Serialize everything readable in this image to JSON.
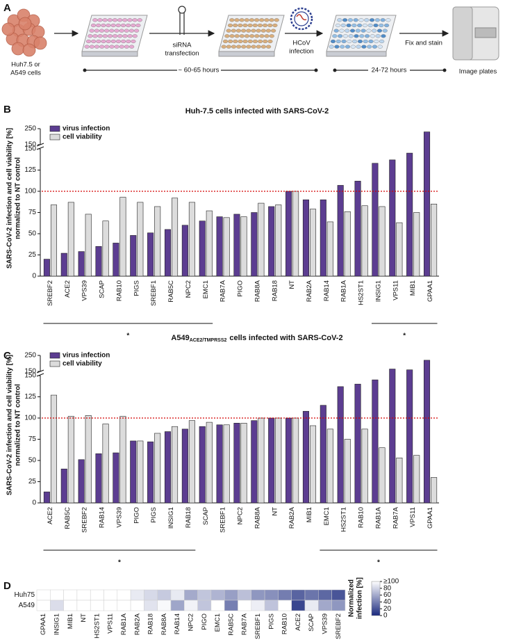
{
  "panel_labels": [
    "A",
    "B",
    "C",
    "D"
  ],
  "workflow": {
    "cells_label": [
      "Huh7.5 or",
      "A549 cells"
    ],
    "transfection_label": [
      "siRNA",
      "transfection"
    ],
    "infection_label": [
      "HCoV",
      "infection"
    ],
    "fix_label": "Fix and stain",
    "image_label": "Image plates",
    "timeline_1": "~ 60-65 hours",
    "timeline_2": "24-72 hours"
  },
  "chart_data": [
    {
      "type": "bar",
      "title": "Huh-7.5 cells infected with SARS-CoV-2",
      "ylabel": [
        "SARS-CoV-2 infection and cell viability [%]",
        "normalized to NT control"
      ],
      "categories": [
        "SREBF2",
        "ACE2",
        "VPS39",
        "SCAP",
        "RAB10",
        "PIGS",
        "SREBF1",
        "RAB5C",
        "NPC2",
        "EMC1",
        "RAB7A",
        "PIGO",
        "RAB8A",
        "RAB18",
        "NT",
        "RAB2A",
        "RAB14",
        "RAB1A",
        "HS2ST1",
        "INSIG1",
        "VPS11",
        "MIB1",
        "GPAA1"
      ],
      "series": [
        {
          "name": "virus infection",
          "color": "#5c3d91",
          "values": [
            20,
            27,
            29,
            35,
            39,
            48,
            51,
            55,
            60,
            65,
            70,
            73,
            75,
            82,
            100,
            90,
            90,
            107,
            112,
            133,
            137,
            145,
            230
          ]
        },
        {
          "name": "cell viability",
          "color": "#dcdcdc",
          "values": [
            84,
            87,
            73,
            65,
            93,
            87,
            82,
            92,
            87,
            77,
            69,
            70,
            86,
            84,
            100,
            79,
            64,
            76,
            83,
            82,
            63,
            75,
            85
          ]
        }
      ],
      "ylim": [
        0,
        250
      ],
      "ybreak": 150,
      "yticks": [
        0,
        25,
        50,
        75,
        100,
        125,
        150
      ],
      "yticks_upper": [
        150,
        250
      ],
      "reference_line": {
        "value": 100,
        "color": "#d40000"
      },
      "significance": [
        {
          "label": "*",
          "from": 0,
          "to": 9
        },
        {
          "label": "*",
          "from": 19,
          "to": 22
        }
      ],
      "legend": "upper left"
    },
    {
      "type": "bar",
      "title": "A549",
      "title_subscript": "ACE2/TMPRSS2",
      "title_suffix": "cells infected with SARS-CoV-2",
      "ylabel": [
        "SARS-CoV-2 infection and cell viability [%]",
        "normalized to NT control"
      ],
      "categories": [
        "ACE2",
        "RAB5C",
        "SREBF2",
        "RAB14",
        "VPS39",
        "PIGO",
        "PIGS",
        "INSIG1",
        "RAB18",
        "SCAP",
        "SREBF1",
        "NPC2",
        "RAB8A",
        "NT",
        "RAB2A",
        "MIB1",
        "EMC1",
        "HS2ST1",
        "RAB10",
        "RAB1A",
        "RAB7A",
        "VPS11",
        "GPAA1"
      ],
      "series": [
        {
          "name": "virus infection",
          "color": "#5c3d91",
          "values": [
            13,
            40,
            51,
            58,
            59,
            73,
            72,
            84,
            87,
            90,
            92,
            94,
            97,
            100,
            100,
            108,
            115,
            137,
            140,
            145,
            165,
            160,
            220
          ]
        },
        {
          "name": "cell viability",
          "color": "#dcdcdc",
          "values": [
            127,
            102,
            103,
            93,
            102,
            73,
            82,
            90,
            97,
            95,
            92,
            94,
            100,
            100,
            100,
            91,
            87,
            75,
            87,
            65,
            53,
            56,
            30
          ]
        }
      ],
      "ylim": [
        0,
        250
      ],
      "ybreak": 150,
      "yticks": [
        0,
        25,
        50,
        75,
        100,
        125,
        150
      ],
      "yticks_upper": [
        150,
        250
      ],
      "reference_line": {
        "value": 100,
        "color": "#d40000"
      },
      "significance": [
        {
          "label": "*",
          "from": 0,
          "to": 8
        },
        {
          "label": "*",
          "from": 16,
          "to": 22
        }
      ],
      "legend": "upper left"
    },
    {
      "type": "heatmap",
      "columns": [
        "GPAA1",
        "INSIG1",
        "MIB1",
        "NT",
        "HS2ST1",
        "VPS11",
        "RAB1A",
        "RAB2A",
        "RAB18",
        "RAB8A",
        "RAB14",
        "NPC2",
        "PIGO",
        "EMC1",
        "RAB5C",
        "RAB7A",
        "SREBF1",
        "PIGS",
        "RAB10",
        "ACE2",
        "SCAP",
        "VPS39",
        "SREBF2"
      ],
      "rows": [
        "Huh75",
        "A549"
      ],
      "values": [
        [
          100,
          100,
          100,
          100,
          100,
          100,
          100,
          90,
          82,
          75,
          90,
          60,
          73,
          65,
          55,
          70,
          51,
          48,
          39,
          27,
          35,
          29,
          20
        ],
        [
          100,
          84,
          100,
          100,
          100,
          100,
          100,
          100,
          87,
          97,
          58,
          94,
          73,
          100,
          40,
          100,
          92,
          72,
          100,
          13,
          90,
          59,
          51
        ]
      ],
      "colormap": [
        "#1b2a7e",
        "#ffffff"
      ],
      "clim": [
        0,
        100
      ],
      "colorbar_label": [
        "Normalized",
        "infection [%]"
      ],
      "colorbar_ticks": [
        0,
        20,
        40,
        60,
        80,
        {
          "value": 100,
          "label": "≥100"
        }
      ]
    }
  ]
}
